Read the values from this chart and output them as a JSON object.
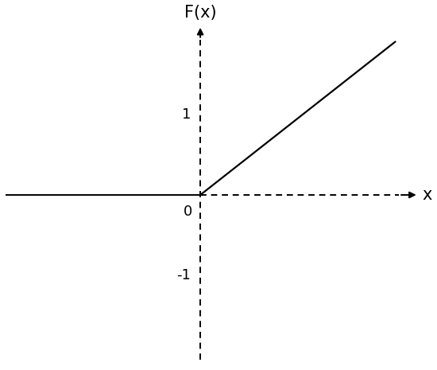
{
  "title": "F(x)",
  "xlabel": "x",
  "xlim": [
    -2.5,
    2.8
  ],
  "ylim": [
    -1.8,
    1.8
  ],
  "x_axis_left": -2.5,
  "x_axis_right_dashed": 2.55,
  "y_axis_bottom": -1.75,
  "y_axis_top_dashed": 1.65,
  "relu_x_start": 0.0,
  "relu_x_end": 2.5,
  "relu_slope": 0.65,
  "line_color": "#000000",
  "line_width": 1.6,
  "axis_color": "#000000",
  "axis_lw": 1.4,
  "dashed_lw": 1.4,
  "dashes_on": 4,
  "dashes_off": 3,
  "tick_label_1": "1",
  "tick_label_neg1": "-1",
  "tick_label_0": "0",
  "tick_1_y": 0.85,
  "tick_neg1_y": -0.85,
  "background_color": "#ffffff",
  "title_fontsize": 15,
  "label_fontsize": 15,
  "tick_fontsize": 13,
  "arrow_mutation": 12
}
